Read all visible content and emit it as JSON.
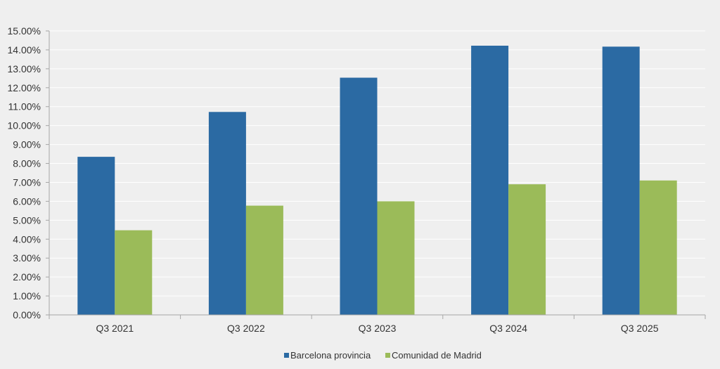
{
  "chart_data": {
    "type": "bar",
    "title": "",
    "xlabel": "",
    "ylabel": "",
    "categories": [
      "Q3 2021",
      "Q3 2022",
      "Q3 2023",
      "Q3 2024",
      "Q3 2025"
    ],
    "series": [
      {
        "name": "Barcelona provincia",
        "color": "#2b6aa3",
        "values": [
          8.35,
          10.72,
          12.53,
          14.22,
          14.17
        ]
      },
      {
        "name": "Comunidad de Madrid",
        "color": "#9bbb59",
        "values": [
          4.47,
          5.77,
          6.0,
          6.9,
          7.1
        ]
      }
    ],
    "ylim": [
      0,
      15
    ],
    "yticks": [
      0,
      1,
      2,
      3,
      4,
      5,
      6,
      7,
      8,
      9,
      10,
      11,
      12,
      13,
      14,
      15
    ],
    "ytick_labels": [
      "0.00%",
      "1.00%",
      "2.00%",
      "3.00%",
      "4.00%",
      "5.00%",
      "6.00%",
      "7.00%",
      "8.00%",
      "9.00%",
      "10.00%",
      "11.00%",
      "12.00%",
      "13.00%",
      "14.00%",
      "15.00%"
    ],
    "grid": true,
    "legend_position": "bottom-center",
    "background": "#efefef",
    "gridline_color": "#ffffff",
    "axis_color": "#a6a6a6"
  }
}
